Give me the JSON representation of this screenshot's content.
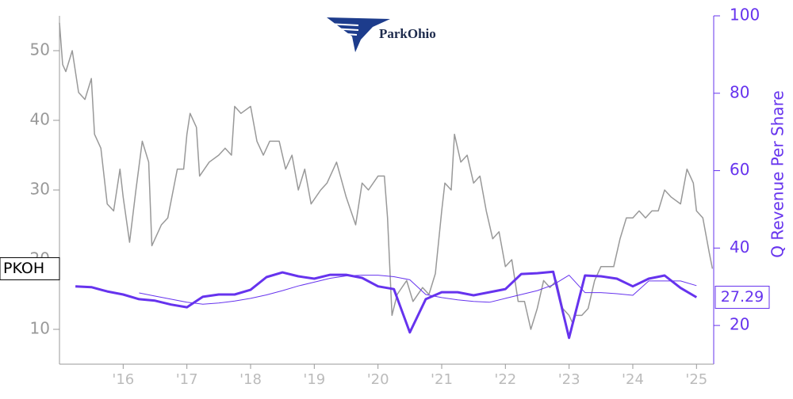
{
  "chart_data": {
    "type": "line",
    "logo_text": "ParkOhio",
    "y2label": "Q Revenue Per Share",
    "xlim": [
      2015,
      2025.27
    ],
    "xticks": [
      {
        "value": 2016,
        "label": "'16"
      },
      {
        "value": 2017,
        "label": "'17"
      },
      {
        "value": 2018,
        "label": "'18"
      },
      {
        "value": 2019,
        "label": "'19"
      },
      {
        "value": 2020,
        "label": "'20"
      },
      {
        "value": 2021,
        "label": "'21"
      },
      {
        "value": 2022,
        "label": "'22"
      },
      {
        "value": 2023,
        "label": "'23"
      },
      {
        "value": 2024,
        "label": "'24"
      },
      {
        "value": 2025,
        "label": "'25"
      }
    ],
    "ylim": [
      5,
      55
    ],
    "yticks": [
      10,
      20,
      30,
      40,
      50
    ],
    "y2lim": [
      10,
      100
    ],
    "y2ticks": [
      20,
      40,
      60,
      80,
      100
    ],
    "series": [
      {
        "name": "PKOH",
        "color": "#999999",
        "width": 1.5,
        "x": [
          2015.0,
          2015.05,
          2015.1,
          2015.2,
          2015.3,
          2015.4,
          2015.5,
          2015.55,
          2015.65,
          2015.75,
          2015.85,
          2015.95,
          2016.0,
          2016.1,
          2016.2,
          2016.3,
          2016.4,
          2016.45,
          2016.6,
          2016.7,
          2016.85,
          2016.95,
          2017.0,
          2017.05,
          2017.15,
          2017.2,
          2017.35,
          2017.5,
          2017.6,
          2017.7,
          2017.75,
          2017.85,
          2018.0,
          2018.1,
          2018.2,
          2018.3,
          2018.45,
          2018.55,
          2018.65,
          2018.75,
          2018.85,
          2018.95,
          2019.1,
          2019.2,
          2019.35,
          2019.5,
          2019.65,
          2019.75,
          2019.85,
          2020.0,
          2020.1,
          2020.15,
          2020.22,
          2020.3,
          2020.45,
          2020.55,
          2020.7,
          2020.8,
          2020.9,
          2021.0,
          2021.05,
          2021.15,
          2021.2,
          2021.3,
          2021.4,
          2021.5,
          2021.6,
          2021.7,
          2021.8,
          2021.9,
          2022.0,
          2022.1,
          2022.2,
          2022.3,
          2022.4,
          2022.5,
          2022.6,
          2022.7,
          2022.8,
          2022.9,
          2023.0,
          2023.05,
          2023.1,
          2023.2,
          2023.3,
          2023.4,
          2023.5,
          2023.6,
          2023.7,
          2023.8,
          2023.9,
          2024.0,
          2024.1,
          2024.2,
          2024.3,
          2024.4,
          2024.5,
          2024.6,
          2024.75,
          2024.85,
          2024.95,
          2025.0,
          2025.1,
          2025.2,
          2025.25
        ],
        "values": [
          54,
          48,
          47,
          50,
          44,
          43,
          46,
          38,
          36,
          28,
          27,
          33,
          29,
          22.5,
          30,
          37,
          34,
          22,
          25,
          26,
          33,
          33,
          38,
          41,
          39,
          32,
          34,
          35,
          36,
          35,
          42,
          41,
          42,
          37,
          35,
          37,
          37,
          33,
          35,
          30,
          33,
          28,
          30,
          31,
          34,
          29,
          25,
          31,
          30,
          32,
          32,
          26,
          12,
          15,
          17,
          14,
          16,
          15,
          18,
          27,
          31,
          30,
          38,
          34,
          35,
          31,
          32,
          27,
          23,
          24,
          19,
          20,
          14,
          14,
          10,
          13,
          17,
          16,
          17,
          13,
          12,
          11,
          12,
          12,
          13,
          17,
          19,
          19,
          19,
          23,
          26,
          26,
          27,
          26,
          27,
          27,
          30,
          29,
          28,
          33,
          31,
          27,
          26,
          21,
          18.7
        ]
      },
      {
        "color": "#6633ee",
        "width": 3,
        "axis": "y2",
        "x": [
          2015.25,
          2015.5,
          2015.75,
          2016.0,
          2016.25,
          2016.5,
          2016.75,
          2017.0,
          2017.25,
          2017.5,
          2017.75,
          2018.0,
          2018.25,
          2018.5,
          2018.75,
          2019.0,
          2019.25,
          2019.5,
          2019.75,
          2020.0,
          2020.25,
          2020.5,
          2020.75,
          2021.0,
          2021.25,
          2021.5,
          2021.75,
          2022.0,
          2022.25,
          2022.5,
          2022.75,
          2023.0,
          2023.25,
          2023.5,
          2023.75,
          2024.0,
          2024.25,
          2024.5,
          2024.75,
          2025.0
        ],
        "values": [
          30.1,
          29.9,
          28.8,
          28.0,
          26.8,
          26.4,
          25.4,
          24.7,
          27.4,
          28.0,
          28.0,
          29.2,
          32.5,
          33.7,
          32.7,
          32.1,
          33.1,
          33.1,
          32.3,
          30.1,
          29.4,
          18.2,
          26.8,
          28.6,
          28.6,
          27.8,
          28.6,
          29.4,
          33.3,
          33.5,
          33.9,
          16.8,
          32.9,
          32.7,
          32.1,
          30.1,
          32.1,
          32.9,
          29.7,
          27.29
        ],
        "value_labels": [
          null,
          null,
          null,
          null,
          null,
          null,
          null,
          null,
          null,
          null,
          null,
          null,
          null,
          null,
          null,
          null,
          null,
          null,
          null,
          null,
          null,
          null,
          null,
          null,
          null,
          null,
          null,
          null,
          null,
          null,
          null,
          null,
          null,
          null,
          null,
          null,
          null,
          null,
          null,
          "27.29"
        ]
      },
      {
        "color": "#6633ee",
        "width": 1,
        "axis": "y2",
        "x": [
          2015.25,
          2015.5,
          2015.75,
          2016.0,
          2016.25,
          2016.5,
          2016.75,
          2017.0,
          2017.25,
          2017.5,
          2017.75,
          2018.0,
          2018.25,
          2018.5,
          2018.75,
          2019.0,
          2019.25,
          2019.5,
          2019.75,
          2020.0,
          2020.25,
          2020.5,
          2020.75,
          2021.0,
          2021.25,
          2021.5,
          2021.75,
          2022.0,
          2022.25,
          2022.5,
          2022.75,
          2023.0,
          2023.25,
          2023.5,
          2023.75,
          2024.0,
          2024.25,
          2024.5,
          2024.75,
          2025.0
        ],
        "values": [
          null,
          null,
          null,
          null,
          28.4,
          27.6,
          26.8,
          26.0,
          25.5,
          25.8,
          26.3,
          27.0,
          27.9,
          29.0,
          30.2,
          31.2,
          32.2,
          32.8,
          33.0,
          33.0,
          32.6,
          31.8,
          28.0,
          27.2,
          26.6,
          26.2,
          26.0,
          27.0,
          28.0,
          29.0,
          30.5,
          33.0,
          28.5,
          28.5,
          28.2,
          27.8,
          31.5,
          31.5,
          31.5,
          30.3
        ]
      }
    ]
  }
}
